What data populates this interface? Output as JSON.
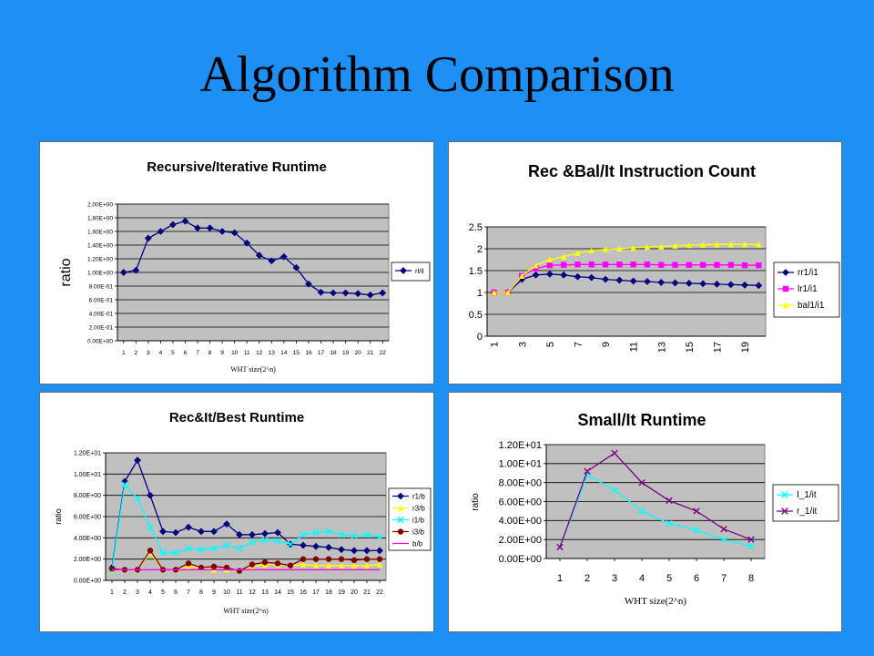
{
  "slide": {
    "title": "Algorithm Comparison",
    "background": "#1e90f5"
  },
  "chart_data": [
    {
      "type": "line",
      "title": "Recursive/Iterative Runtime",
      "xlabel": "WHT size(2^n)",
      "ylabel": "ratio",
      "ytick_format": "sci",
      "ylim": [
        0,
        2.0
      ],
      "ytick_step": 0.2,
      "ytick_labels": [
        "0.00E+00",
        "2.00E-01",
        "4.00E-01",
        "6.00E-01",
        "8.00E-01",
        "1.00E+00",
        "1.20E+00",
        "1.40E+00",
        "1.60E+00",
        "1.80E+00",
        "2.00E+00"
      ],
      "x": [
        1,
        2,
        3,
        4,
        5,
        6,
        7,
        8,
        9,
        10,
        11,
        12,
        13,
        14,
        15,
        16,
        17,
        18,
        19,
        20,
        21,
        22
      ],
      "xtick_labels": [
        "1",
        "2",
        "3",
        "4",
        "5",
        "6",
        "7",
        "8",
        "9",
        "10",
        "11",
        "12",
        "13",
        "14",
        "15",
        "16",
        "17",
        "18",
        "19",
        "20",
        "21",
        "22"
      ],
      "grid": true,
      "legend_position": "right",
      "series": [
        {
          "name": "rl/il",
          "color": "#000080",
          "marker": "diamond",
          "values": [
            1.0,
            1.03,
            1.5,
            1.6,
            1.7,
            1.75,
            1.65,
            1.65,
            1.6,
            1.58,
            1.43,
            1.25,
            1.17,
            1.23,
            1.07,
            0.83,
            0.71,
            0.7,
            0.7,
            0.69,
            0.67,
            0.7
          ]
        }
      ]
    },
    {
      "type": "line",
      "title": "Rec &Bal/It Instruction Count",
      "xlabel": "",
      "ylabel": "",
      "ylim": [
        0,
        2.5
      ],
      "ytick_step": 0.5,
      "ytick_labels": [
        "0",
        "0.5",
        "1",
        "1.5",
        "2",
        "2.5"
      ],
      "x": [
        1,
        2,
        3,
        4,
        5,
        6,
        7,
        8,
        9,
        10,
        11,
        12,
        13,
        14,
        15,
        16,
        17,
        18,
        19,
        20
      ],
      "xtick_labels": [
        "1",
        "3",
        "5",
        "7",
        "9",
        "11",
        "13",
        "15",
        "17",
        "19"
      ],
      "xtick_rotated": true,
      "grid": true,
      "legend_position": "right",
      "series": [
        {
          "name": "rr1/i1",
          "color": "#000080",
          "marker": "diamond",
          "values": [
            1.0,
            1.0,
            1.3,
            1.4,
            1.42,
            1.4,
            1.36,
            1.34,
            1.3,
            1.28,
            1.26,
            1.25,
            1.23,
            1.22,
            1.21,
            1.2,
            1.19,
            1.18,
            1.17,
            1.16
          ]
        },
        {
          "name": "lr1/i1",
          "color": "#ff00ff",
          "marker": "square",
          "values": [
            1.0,
            1.0,
            1.38,
            1.55,
            1.62,
            1.63,
            1.64,
            1.64,
            1.64,
            1.64,
            1.64,
            1.64,
            1.63,
            1.63,
            1.63,
            1.63,
            1.63,
            1.63,
            1.62,
            1.62
          ]
        },
        {
          "name": "bal1/i1",
          "color": "#ffff00",
          "marker": "triangle",
          "values": [
            1.0,
            1.0,
            1.38,
            1.62,
            1.75,
            1.82,
            1.9,
            1.96,
            1.99,
            2.0,
            2.02,
            2.04,
            2.05,
            2.07,
            2.08,
            2.09,
            2.1,
            2.1,
            2.1,
            2.1
          ]
        }
      ]
    },
    {
      "type": "line",
      "title": "Rec&It/Best Runtime",
      "xlabel": "WHT size(2^n)",
      "ylabel": "ratio",
      "ylim": [
        0,
        12
      ],
      "ytick_step": 2,
      "ytick_labels": [
        "0.00E+00",
        "2.00E+00",
        "4.00E+00",
        "6.00E+00",
        "8.00E+00",
        "1.00E+01",
        "1.20E+01"
      ],
      "x": [
        1,
        2,
        3,
        4,
        5,
        6,
        7,
        8,
        9,
        10,
        11,
        12,
        13,
        14,
        15,
        16,
        17,
        18,
        19,
        20,
        21,
        22
      ],
      "xtick_labels": [
        "1",
        "2",
        "3",
        "4",
        "5",
        "6",
        "7",
        "8",
        "9",
        "10",
        "11",
        "12",
        "13",
        "14",
        "15",
        "16",
        "17",
        "18",
        "19",
        "20",
        "21",
        "22"
      ],
      "grid": true,
      "legend_position": "right",
      "series": [
        {
          "name": "r1/b",
          "color": "#000080",
          "marker": "diamond",
          "values": [
            1.2,
            9.3,
            11.3,
            8.0,
            4.6,
            4.5,
            5.0,
            4.6,
            4.6,
            5.3,
            4.3,
            4.3,
            4.4,
            4.5,
            3.4,
            3.3,
            3.2,
            3.1,
            2.9,
            2.8,
            2.8,
            2.8
          ]
        },
        {
          "name": "r3/b",
          "color": "#ffff00",
          "marker": "triangle",
          "values": [
            1.0,
            1.0,
            1.0,
            2.6,
            1.0,
            1.0,
            1.3,
            1.2,
            1.0,
            1.0,
            1.0,
            1.3,
            1.5,
            1.5,
            1.4,
            1.5,
            1.4,
            1.4,
            1.4,
            1.4,
            1.4,
            1.5
          ]
        },
        {
          "name": "i1/b",
          "color": "#00ffff",
          "marker": "x",
          "values": [
            1.0,
            9.0,
            7.7,
            5.0,
            2.6,
            2.6,
            3.0,
            2.9,
            3.0,
            3.3,
            3.0,
            3.6,
            3.8,
            3.7,
            3.4,
            4.3,
            4.5,
            4.6,
            4.3,
            4.2,
            4.3,
            4.1
          ]
        },
        {
          "name": "i3/b",
          "color": "#800000",
          "marker": "circle",
          "values": [
            1.1,
            1.0,
            1.0,
            2.8,
            1.0,
            1.0,
            1.6,
            1.2,
            1.3,
            1.2,
            0.9,
            1.5,
            1.7,
            1.6,
            1.4,
            2.0,
            2.0,
            2.0,
            2.0,
            1.9,
            2.0,
            2.0
          ]
        },
        {
          "name": "b/b",
          "color": "#ff00ff",
          "marker": "none",
          "values": [
            1,
            1,
            1,
            1,
            1,
            1,
            1,
            1,
            1,
            1,
            1,
            1,
            1,
            1,
            1,
            1,
            1,
            1,
            1,
            1,
            1,
            1
          ]
        }
      ]
    },
    {
      "type": "line",
      "title": "Small/It Runtime",
      "xlabel": "WHT size(2^n)",
      "ylabel": "ratio",
      "ylim": [
        0,
        12
      ],
      "ytick_step": 2,
      "ytick_labels": [
        "0.00E+00",
        "2.00E+00",
        "4.00E+00",
        "6.00E+00",
        "8.00E+00",
        "1.00E+01",
        "1.20E+01"
      ],
      "x": [
        1,
        2,
        3,
        4,
        5,
        6,
        7,
        8
      ],
      "xtick_labels": [
        "1",
        "2",
        "3",
        "4",
        "5",
        "6",
        "7",
        "8"
      ],
      "grid": true,
      "legend_position": "right",
      "series": [
        {
          "name": "I_1/it",
          "color": "#00ffff",
          "marker": "x",
          "values": [
            1.2,
            8.8,
            7.2,
            5.0,
            3.7,
            3.0,
            2.0,
            1.3
          ]
        },
        {
          "name": "r_1/it",
          "color": "#800080",
          "marker": "x",
          "values": [
            1.2,
            9.2,
            11.1,
            8.0,
            6.1,
            5.0,
            3.1,
            2.0
          ]
        }
      ]
    }
  ]
}
